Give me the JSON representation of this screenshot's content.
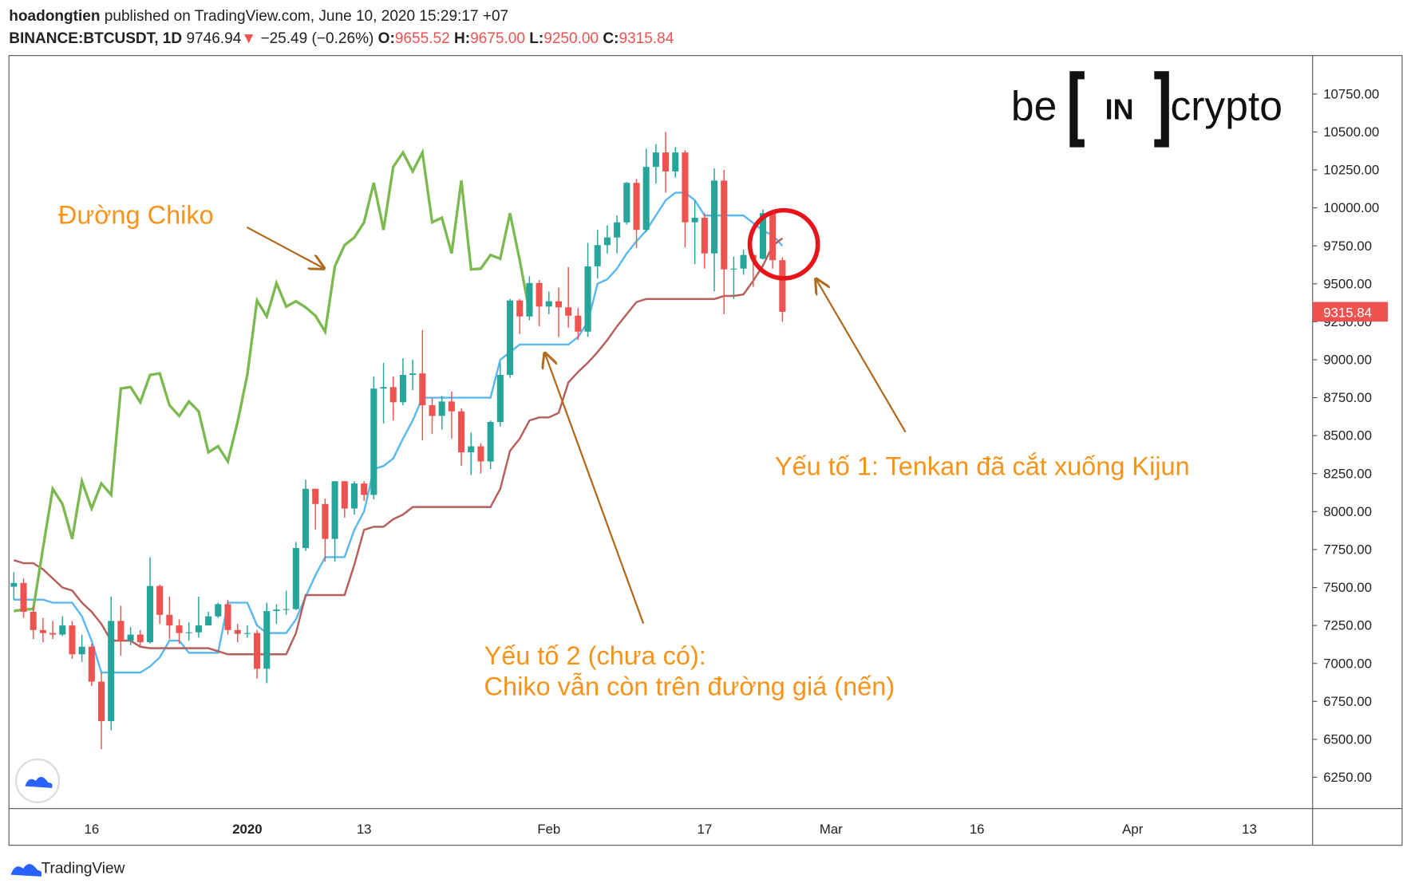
{
  "header": {
    "author": "hoadongtien",
    "published": "published on TradingView.com, June 10, 2020 15:29:17 +07",
    "symbol": "BINANCE:BTCUSDT, 1D",
    "last": "9746.94",
    "change_arrow": "▼",
    "change": "−25.49 (−0.26%)",
    "o_label": "O:",
    "o_value": "9655.52",
    "h_label": "H:",
    "h_value": "9675.00",
    "l_label": "L:",
    "l_value": "9250.00",
    "c_label": "C:",
    "c_value": "9315.84"
  },
  "logo": {
    "left": "be",
    "middle": "IN",
    "right": "crypto"
  },
  "footer": {
    "brand": "TradingView"
  },
  "chart_data": {
    "type": "candlestick",
    "up_color": "#26a69a",
    "down_color": "#ef5350",
    "categories": [
      null,
      null,
      null,
      null,
      null,
      null,
      null,
      null,
      "16",
      null,
      null,
      null,
      null,
      null,
      null,
      null,
      null,
      null,
      null,
      null,
      null,
      null,
      null,
      null,
      "2020",
      null,
      null,
      null,
      null,
      null,
      null,
      null,
      null,
      null,
      null,
      null,
      "13",
      null,
      null,
      null,
      null,
      null,
      null,
      null,
      null,
      null,
      null,
      null,
      null,
      null,
      null,
      null,
      null,
      null,
      null,
      "Feb",
      null,
      null,
      null,
      null,
      null,
      null,
      null,
      null,
      null,
      null,
      null,
      null,
      null,
      null,
      null,
      "17",
      null,
      null,
      null,
      null,
      null,
      null,
      null,
      null,
      null,
      null,
      null,
      null,
      "Mar",
      null,
      null,
      null,
      null,
      null,
      null,
      null,
      null,
      null,
      null,
      null,
      null,
      null,
      null,
      "16",
      null,
      null,
      null,
      null,
      null,
      null,
      null,
      null,
      null,
      null,
      null,
      null,
      null,
      null,
      null,
      "Apr",
      null,
      null,
      null,
      null,
      null,
      null,
      null,
      null,
      null,
      null,
      null,
      "13",
      null,
      null,
      null,
      null,
      null,
      null
    ],
    "open": [
      7505,
      7530,
      7340,
      7220,
      7200,
      7190,
      7250,
      7060,
      7110,
      6880,
      6620,
      7280,
      7150,
      7190,
      7140,
      7510,
      7320,
      7250,
      7200,
      7205,
      7250,
      7310,
      7390,
      7220,
      7195,
      7200,
      6965,
      7345,
      7355,
      7358,
      7760,
      8150,
      8050,
      7820,
      8200,
      8020,
      8185,
      8110,
      8810,
      8820,
      8720,
      8900,
      8910,
      8700,
      8630,
      8725,
      8660,
      8390,
      8430,
      8330,
      8590,
      8900,
      9390,
      9285,
      9505,
      9350,
      9385,
      9345,
      9290,
      9185,
      9615,
      9755,
      9805,
      9905,
      10165,
      9855,
      10270,
      10365,
      10240,
      10365,
      9905,
      9935,
      9700,
      10180,
      9595,
      9600,
      9690,
      9665,
      9965,
      9655.52,
      null,
      null,
      null,
      null,
      null,
      null,
      null,
      null,
      null,
      null,
      null,
      null,
      null,
      null,
      null,
      null,
      null,
      null,
      null,
      null,
      null,
      null,
      null,
      null,
      null,
      null,
      null,
      null,
      null,
      null,
      null,
      null,
      null,
      null,
      null,
      null,
      null,
      null,
      null,
      null,
      null,
      null,
      null,
      null,
      null,
      null,
      null,
      null,
      null,
      null,
      null,
      null,
      null,
      null
    ],
    "high": [
      7600,
      7560,
      7380,
      7300,
      7280,
      7310,
      7280,
      7190,
      7130,
      6940,
      7440,
      7380,
      7240,
      7220,
      7700,
      7520,
      7440,
      7290,
      7270,
      7440,
      7340,
      7400,
      7420,
      7260,
      7250,
      7220,
      7400,
      7390,
      7480,
      7800,
      8210,
      8150,
      8085,
      8200,
      8200,
      8200,
      8200,
      8890,
      8980,
      8890,
      9010,
      9000,
      9195,
      8750,
      8760,
      8790,
      8680,
      8520,
      8450,
      8600,
      8980,
      9400,
      9400,
      9550,
      9525,
      9450,
      9475,
      9610,
      9340,
      9770,
      9855,
      9885,
      9950,
      10170,
      10190,
      10390,
      10420,
      10500,
      10400,
      10380,
      10050,
      9965,
      10260,
      10250,
      9680,
      9725,
      9700,
      9990,
      9980,
      9675,
      null,
      null,
      null,
      null,
      null,
      null,
      null,
      null,
      null,
      null,
      null,
      null,
      null,
      null,
      null,
      null,
      null,
      null,
      null,
      null,
      null,
      null,
      null,
      null,
      null,
      null,
      null,
      null,
      null,
      null,
      null,
      null,
      null,
      null,
      null,
      null,
      null,
      null,
      null,
      null,
      null,
      null,
      null,
      null,
      null,
      null,
      null,
      null,
      null,
      null,
      null,
      null,
      null,
      null
    ],
    "low": [
      7420,
      7300,
      7160,
      7140,
      7160,
      7180,
      7030,
      7010,
      6850,
      6435,
      6560,
      7050,
      7120,
      7110,
      7130,
      7260,
      7160,
      7130,
      7150,
      7170,
      7250,
      7300,
      7190,
      7140,
      7170,
      6900,
      6870,
      7260,
      7320,
      7350,
      7740,
      7880,
      7670,
      7670,
      7960,
      7980,
      8070,
      8080,
      8580,
      8600,
      8700,
      8800,
      8470,
      8510,
      8540,
      8480,
      8300,
      8240,
      8250,
      8280,
      8560,
      8880,
      9170,
      9260,
      9220,
      9300,
      9150,
      9210,
      9130,
      9150,
      9535,
      9700,
      9700,
      9890,
      9735,
      9840,
      10160,
      10100,
      10200,
      9740,
      9630,
      9600,
      9450,
      9300,
      9400,
      9560,
      9480,
      9660,
      9600,
      9250,
      null,
      null,
      null,
      null,
      null,
      null,
      null,
      null,
      null,
      null,
      null,
      null,
      null,
      null,
      null,
      null,
      null,
      null,
      null,
      null,
      null,
      null,
      null,
      null,
      null,
      null,
      null,
      null,
      null,
      null,
      null,
      null,
      null,
      null,
      null,
      null,
      null,
      null,
      null,
      null,
      null,
      null,
      null,
      null,
      null,
      null,
      null,
      null,
      null,
      null,
      null,
      null,
      null,
      null
    ],
    "close": [
      7530,
      7340,
      7220,
      7200,
      7190,
      7250,
      7060,
      7110,
      6880,
      6620,
      7280,
      7150,
      7190,
      7140,
      7510,
      7320,
      7250,
      7200,
      7205,
      7250,
      7310,
      7390,
      7220,
      7195,
      7200,
      6965,
      7345,
      7355,
      7358,
      7760,
      8150,
      8050,
      7820,
      8200,
      8020,
      8185,
      8110,
      8810,
      8820,
      8720,
      8900,
      8910,
      8700,
      8630,
      8725,
      8660,
      8390,
      8430,
      8330,
      8590,
      8900,
      9390,
      9285,
      9505,
      9350,
      9385,
      9345,
      9290,
      9185,
      9615,
      9755,
      9805,
      9905,
      10165,
      9855,
      10270,
      10365,
      10240,
      10365,
      9905,
      9935,
      9700,
      10180,
      9595,
      9600,
      9690,
      9665,
      9965,
      9655.52,
      9315.84,
      null,
      null,
      null,
      null,
      null,
      null,
      null,
      null,
      null,
      null,
      null,
      null,
      null,
      null,
      null,
      null,
      null,
      null,
      null,
      null,
      null,
      null,
      null,
      null,
      null,
      null,
      null,
      null,
      null,
      null,
      null,
      null,
      null,
      null,
      null,
      null,
      null,
      null,
      null,
      null,
      null,
      null,
      null,
      null,
      null,
      null,
      null,
      null,
      null,
      null,
      null,
      null,
      null,
      null
    ],
    "lines": [
      {
        "color": "#5cb8f0",
        "values": [
          7420,
          7420,
          7420,
          7420,
          7400,
          7400,
          7400,
          7310,
          7150,
          6940,
          6940,
          6940,
          6940,
          6940,
          6980,
          7040,
          7150,
          7150,
          7070,
          7070,
          7070,
          7070,
          7400,
          7400,
          7400,
          7250,
          7200,
          7200,
          7200,
          7290,
          7440,
          7580,
          7700,
          7700,
          7700,
          7880,
          8000,
          8280,
          8300,
          8350,
          8480,
          8600,
          8750,
          8750,
          8750,
          8750,
          8750,
          8750,
          8750,
          8750,
          9000,
          9050,
          9100,
          9100,
          9100,
          9100,
          9100,
          9100,
          9150,
          9250,
          9500,
          9530,
          9600,
          9700,
          9780,
          9850,
          9950,
          10050,
          10100,
          10100,
          10050,
          9950,
          9950,
          9950,
          9950,
          9950,
          9900,
          9850,
          9820,
          9750,
          null,
          null,
          null,
          null,
          null,
          null,
          null,
          null,
          null,
          null,
          null,
          null,
          null,
          null,
          null,
          null,
          null,
          null,
          null,
          null,
          null,
          null,
          null,
          null,
          null,
          null,
          null,
          null,
          null,
          null,
          null,
          null,
          null,
          null,
          null,
          null,
          null,
          null,
          null,
          null,
          null,
          null,
          null,
          null,
          null,
          null,
          null,
          null,
          null,
          null,
          null,
          null,
          null,
          null
        ]
      },
      {
        "color": "#b5605a",
        "values": [
          7680,
          7660,
          7660,
          7620,
          7560,
          7500,
          7480,
          7400,
          7340,
          7260,
          7150,
          7150,
          7150,
          7110,
          7100,
          7100,
          7100,
          7100,
          7100,
          7100,
          7100,
          7080,
          7060,
          7060,
          7060,
          7060,
          7060,
          7060,
          7060,
          7200,
          7450,
          7450,
          7450,
          7450,
          7450,
          7650,
          7880,
          7900,
          7900,
          7950,
          7980,
          8030,
          8030,
          8030,
          8030,
          8030,
          8030,
          8030,
          8030,
          8030,
          8150,
          8400,
          8480,
          8600,
          8620,
          8620,
          8650,
          8850,
          8920,
          8980,
          9050,
          9130,
          9220,
          9300,
          9380,
          9400,
          9400,
          9400,
          9400,
          9400,
          9400,
          9400,
          9400,
          9420,
          9420,
          9430,
          9520,
          9620,
          9750,
          9800,
          null,
          null,
          null,
          null,
          null,
          null,
          null,
          null,
          null,
          null,
          null,
          null,
          null,
          null,
          null,
          null,
          null,
          null,
          null,
          null,
          null,
          null,
          null,
          null,
          null,
          null,
          null,
          null,
          null,
          null,
          null,
          null,
          null,
          null,
          null,
          null,
          null,
          null,
          null,
          null,
          null,
          null,
          null,
          null,
          null,
          null,
          null,
          null,
          null,
          null,
          null,
          null,
          null,
          null
        ]
      },
      {
        "color": "#7cb950",
        "values": [
          7345,
          7355,
          7358,
          7760,
          8150,
          8050,
          7820,
          8200,
          8020,
          8185,
          8110,
          8810,
          8820,
          8720,
          8900,
          8910,
          8700,
          8630,
          8725,
          8660,
          8390,
          8430,
          8330,
          8590,
          8900,
          9390,
          9285,
          9505,
          9350,
          9385,
          9345,
          9290,
          9185,
          9615,
          9755,
          9805,
          9905,
          10165,
          9855,
          10270,
          10365,
          10240,
          10365,
          9905,
          9935,
          9700,
          10180,
          9595,
          9600,
          9690,
          9665,
          9965,
          9655.52,
          9315.84,
          null,
          null,
          null,
          null,
          null,
          null,
          null,
          null,
          null,
          null,
          null,
          null,
          null,
          null,
          null,
          null,
          null,
          null,
          null,
          null,
          null,
          null,
          null,
          null,
          null,
          null,
          null,
          null,
          null,
          null,
          null,
          null,
          null,
          null,
          null,
          null,
          null,
          null,
          null,
          null,
          null,
          null,
          null,
          null,
          null,
          null,
          null,
          null,
          null,
          null,
          null,
          null,
          null,
          null,
          null,
          null,
          null,
          null,
          null,
          null,
          null,
          null,
          null,
          null,
          null,
          null,
          null,
          null,
          null,
          null,
          null,
          null,
          null,
          null,
          null,
          null,
          null,
          null
        ]
      }
    ],
    "ylim": [
      6044,
      11003
    ],
    "yticks": [
      {
        "value": 6250,
        "label": "6250.00"
      },
      {
        "value": 6500,
        "label": "6500.00"
      },
      {
        "value": 6750,
        "label": "6750.00"
      },
      {
        "value": 7000,
        "label": "7000.00"
      },
      {
        "value": 7250,
        "label": "7250.00"
      },
      {
        "value": 7500,
        "label": "7500.00"
      },
      {
        "value": 7750,
        "label": "7750.00"
      },
      {
        "value": 8000,
        "label": "8000.00"
      },
      {
        "value": 8250,
        "label": "8250.00"
      },
      {
        "value": 8500,
        "label": "8500.00"
      },
      {
        "value": 8750,
        "label": "8750.00"
      },
      {
        "value": 9000,
        "label": "9000.00"
      },
      {
        "value": 9250,
        "label": "9250.00"
      },
      {
        "value": 9500,
        "label": "9500.00"
      },
      {
        "value": 9750,
        "label": "9750.00"
      },
      {
        "value": 10000,
        "label": "10000.00"
      },
      {
        "value": 10250,
        "label": "10250.00"
      },
      {
        "value": 10500,
        "label": "10500.00"
      },
      {
        "value": 10750,
        "label": "10750.00"
      }
    ],
    "grid": false,
    "annotations": {
      "chiko": "Đường Chiko",
      "factor1": "Yếu tố 1: Tenkan đã cắt xuống Kijun",
      "factor2_line1": "Yếu tố 2 (chưa có):",
      "factor2_line2": "Chiko vẫn còn trên đường giá (nến)"
    }
  }
}
